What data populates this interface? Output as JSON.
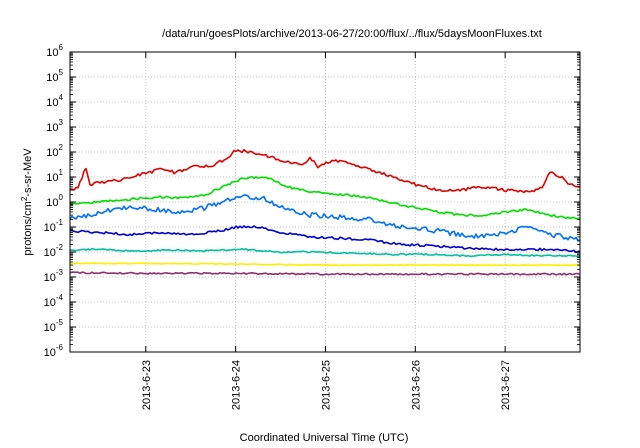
{
  "chart_data": {
    "type": "line",
    "title": "/data/run/goesPlots/archive/2013-06-27/20:00/flux/../flux/5daysMoonFluxes.txt",
    "xlabel": "Coordinated Universal Time (UTC)",
    "ylabel": {
      "before": "protons/cm",
      "sup": "2",
      "after": "-s-sr-MeV"
    },
    "y_scale": "log",
    "ylim_exp": [
      -6,
      6
    ],
    "y_ticks": [
      {
        "base": "10",
        "exp": "-6"
      },
      {
        "base": "10",
        "exp": "-5"
      },
      {
        "base": "10",
        "exp": "-4"
      },
      {
        "base": "10",
        "exp": "-3"
      },
      {
        "base": "10",
        "exp": "-2"
      },
      {
        "base": "10",
        "exp": "-1"
      },
      {
        "base": "10",
        "exp": "0"
      },
      {
        "base": "10",
        "exp": "1"
      },
      {
        "base": "10",
        "exp": "2"
      },
      {
        "base": "10",
        "exp": "3"
      },
      {
        "base": "10",
        "exp": "4"
      },
      {
        "base": "10",
        "exp": "5"
      },
      {
        "base": "10",
        "exp": "6"
      }
    ],
    "x_range": [
      "2013-06-22 03:45",
      "2013-06-27 20:00"
    ],
    "x_ticks": [
      "2013-6-23",
      "2013-6-24",
      "2013-6-25",
      "2013-6-26",
      "2013-6-27"
    ],
    "grid": true,
    "legend": "none",
    "series": [
      {
        "color": "#e00000",
        "points": [
          [
            "2013-06-22 03:45",
            3
          ],
          [
            "2013-06-22 06:00",
            4
          ],
          [
            "2013-06-22 08:00",
            25
          ],
          [
            "2013-06-22 09:00",
            5
          ],
          [
            "2013-06-22 12:00",
            6
          ],
          [
            "2013-06-22 18:00",
            8
          ],
          [
            "2013-06-22 22:00",
            12
          ],
          [
            "2013-06-23 04:00",
            20
          ],
          [
            "2013-06-23 08:00",
            15
          ],
          [
            "2013-06-23 12:00",
            25
          ],
          [
            "2013-06-23 18:00",
            30
          ],
          [
            "2013-06-23 22:00",
            60
          ],
          [
            "2013-06-24 00:00",
            120
          ],
          [
            "2013-06-24 06:00",
            90
          ],
          [
            "2013-06-24 12:00",
            45
          ],
          [
            "2013-06-24 18:00",
            30
          ],
          [
            "2013-06-24 20:00",
            60
          ],
          [
            "2013-06-24 22:00",
            25
          ],
          [
            "2013-06-25 02:00",
            50
          ],
          [
            "2013-06-25 06:00",
            35
          ],
          [
            "2013-06-25 12:00",
            20
          ],
          [
            "2013-06-25 18:00",
            10
          ],
          [
            "2013-06-26 00:00",
            5
          ],
          [
            "2013-06-26 06:00",
            3
          ],
          [
            "2013-06-26 12:00",
            3
          ],
          [
            "2013-06-26 18:00",
            4
          ],
          [
            "2013-06-27 00:00",
            3
          ],
          [
            "2013-06-27 06:00",
            2.5
          ],
          [
            "2013-06-27 10:00",
            4
          ],
          [
            "2013-06-27 12:00",
            15
          ],
          [
            "2013-06-27 15:00",
            10
          ],
          [
            "2013-06-27 17:00",
            5
          ],
          [
            "2013-06-27 20:00",
            4
          ]
        ]
      },
      {
        "color": "#00e000",
        "points": [
          [
            "2013-06-22 03:45",
            0.8
          ],
          [
            "2013-06-22 12:00",
            1.0
          ],
          [
            "2013-06-22 20:00",
            1.3
          ],
          [
            "2013-06-23 04:00",
            1.6
          ],
          [
            "2013-06-23 10:00",
            1.4
          ],
          [
            "2013-06-23 16:00",
            2.0
          ],
          [
            "2013-06-23 22:00",
            5
          ],
          [
            "2013-06-24 02:00",
            9
          ],
          [
            "2013-06-24 08:00",
            10
          ],
          [
            "2013-06-24 14:00",
            4
          ],
          [
            "2013-06-24 20:00",
            2.5
          ],
          [
            "2013-06-25 04:00",
            2.0
          ],
          [
            "2013-06-25 12:00",
            1.5
          ],
          [
            "2013-06-25 18:00",
            0.9
          ],
          [
            "2013-06-26 00:00",
            0.6
          ],
          [
            "2013-06-26 06:00",
            0.4
          ],
          [
            "2013-06-26 12:00",
            0.3
          ],
          [
            "2013-06-26 18:00",
            0.3
          ],
          [
            "2013-06-27 00:00",
            0.4
          ],
          [
            "2013-06-27 06:00",
            0.5
          ],
          [
            "2013-06-27 12:00",
            0.3
          ],
          [
            "2013-06-27 20:00",
            0.2
          ]
        ]
      },
      {
        "color": "#0070ff",
        "points": [
          [
            "2013-06-22 03:45",
            0.2
          ],
          [
            "2013-06-22 12:00",
            0.4
          ],
          [
            "2013-06-22 20:00",
            0.6
          ],
          [
            "2013-06-23 04:00",
            0.5
          ],
          [
            "2013-06-23 10:00",
            0.4
          ],
          [
            "2013-06-23 16:00",
            0.6
          ],
          [
            "2013-06-23 22:00",
            1.2
          ],
          [
            "2013-06-24 02:00",
            1.8
          ],
          [
            "2013-06-24 08:00",
            1.3
          ],
          [
            "2013-06-24 14:00",
            0.5
          ],
          [
            "2013-06-24 20:00",
            0.3
          ],
          [
            "2013-06-25 04:00",
            0.25
          ],
          [
            "2013-06-25 12:00",
            0.2
          ],
          [
            "2013-06-25 18:00",
            0.12
          ],
          [
            "2013-06-26 00:00",
            0.09
          ],
          [
            "2013-06-26 06:00",
            0.07
          ],
          [
            "2013-06-26 12:00",
            0.05
          ],
          [
            "2013-06-26 18:00",
            0.04
          ],
          [
            "2013-06-27 00:00",
            0.06
          ],
          [
            "2013-06-27 06:00",
            0.1
          ],
          [
            "2013-06-27 12:00",
            0.05
          ],
          [
            "2013-06-27 20:00",
            0.03
          ]
        ]
      },
      {
        "color": "#0000d0",
        "points": [
          [
            "2013-06-22 03:45",
            0.07
          ],
          [
            "2013-06-22 12:00",
            0.06
          ],
          [
            "2013-06-22 20:00",
            0.05
          ],
          [
            "2013-06-23 04:00",
            0.06
          ],
          [
            "2013-06-23 12:00",
            0.05
          ],
          [
            "2013-06-23 20:00",
            0.07
          ],
          [
            "2013-06-24 00:00",
            0.1
          ],
          [
            "2013-06-24 06:00",
            0.1
          ],
          [
            "2013-06-24 12:00",
            0.06
          ],
          [
            "2013-06-24 20:00",
            0.04
          ],
          [
            "2013-06-25 04:00",
            0.035
          ],
          [
            "2013-06-25 12:00",
            0.03
          ],
          [
            "2013-06-25 20:00",
            0.02
          ],
          [
            "2013-06-26 04:00",
            0.018
          ],
          [
            "2013-06-26 12:00",
            0.015
          ],
          [
            "2013-06-26 20:00",
            0.013
          ],
          [
            "2013-06-27 04:00",
            0.012
          ],
          [
            "2013-06-27 12:00",
            0.013
          ],
          [
            "2013-06-27 20:00",
            0.01
          ]
        ]
      },
      {
        "color": "#00c0a0",
        "points": [
          [
            "2013-06-22 03:45",
            0.012
          ],
          [
            "2013-06-22 12:00",
            0.013
          ],
          [
            "2013-06-22 20:00",
            0.011
          ],
          [
            "2013-06-23 06:00",
            0.012
          ],
          [
            "2013-06-23 16:00",
            0.011
          ],
          [
            "2013-06-24 02:00",
            0.013
          ],
          [
            "2013-06-24 12:00",
            0.01
          ],
          [
            "2013-06-24 22:00",
            0.01
          ],
          [
            "2013-06-25 08:00",
            0.009
          ],
          [
            "2013-06-25 18:00",
            0.008
          ],
          [
            "2013-06-26 04:00",
            0.008
          ],
          [
            "2013-06-26 14:00",
            0.007
          ],
          [
            "2013-06-27 00:00",
            0.008
          ],
          [
            "2013-06-27 10:00",
            0.007
          ],
          [
            "2013-06-27 20:00",
            0.007
          ]
        ]
      },
      {
        "color": "#ffee00",
        "points": [
          [
            "2013-06-22 03:45",
            0.0035
          ],
          [
            "2013-06-23 00:00",
            0.0035
          ],
          [
            "2013-06-24 00:00",
            0.0033
          ],
          [
            "2013-06-25 00:00",
            0.003
          ],
          [
            "2013-06-26 00:00",
            0.003
          ],
          [
            "2013-06-27 00:00",
            0.003
          ],
          [
            "2013-06-27 20:00",
            0.003
          ]
        ]
      },
      {
        "color": "#903070",
        "points": [
          [
            "2013-06-22 03:45",
            0.0015
          ],
          [
            "2013-06-23 00:00",
            0.0014
          ],
          [
            "2013-06-24 00:00",
            0.0014
          ],
          [
            "2013-06-25 00:00",
            0.0013
          ],
          [
            "2013-06-26 00:00",
            0.0013
          ],
          [
            "2013-06-27 00:00",
            0.0013
          ],
          [
            "2013-06-27 20:00",
            0.0013
          ]
        ]
      }
    ]
  }
}
